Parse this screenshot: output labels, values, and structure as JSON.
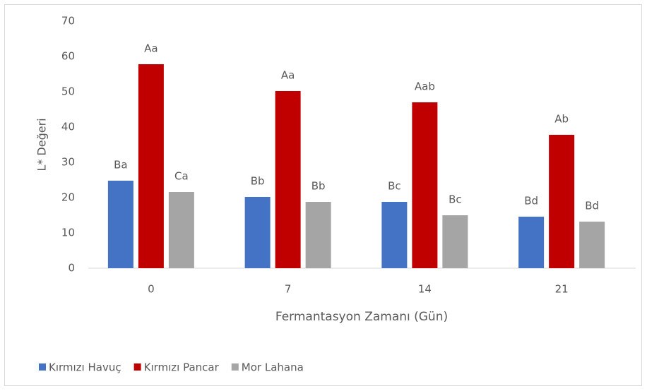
{
  "chart_data": {
    "type": "bar",
    "y_label": "L* Değeri",
    "x_label": "Fermantasyon Zamanı (Gün)",
    "categories": [
      "0",
      "7",
      "14",
      "21"
    ],
    "series": [
      {
        "name": "Kırmızı Havuç",
        "color": "#4472c4",
        "values": [
          24.8,
          20.2,
          18.8,
          14.6
        ],
        "letters": [
          "Ba",
          "Bb",
          "Bc",
          "Bd"
        ]
      },
      {
        "name": "Kırmızı Pancar",
        "color": "#c00000",
        "values": [
          57.8,
          50.2,
          47,
          37.8
        ],
        "letters": [
          "Aa",
          "Aa",
          "Aab",
          "Ab"
        ]
      },
      {
        "name": "Mor Lahana",
        "color": "#a5a5a5",
        "values": [
          21.6,
          18.8,
          15,
          13.2
        ],
        "letters": [
          "Ca",
          "Bb",
          "Bc",
          "Bd"
        ]
      }
    ],
    "ylim": [
      0,
      70
    ],
    "yticks": [
      0,
      10,
      20,
      30,
      40,
      50,
      60,
      70
    ],
    "grid": false,
    "legend": "bottom"
  }
}
